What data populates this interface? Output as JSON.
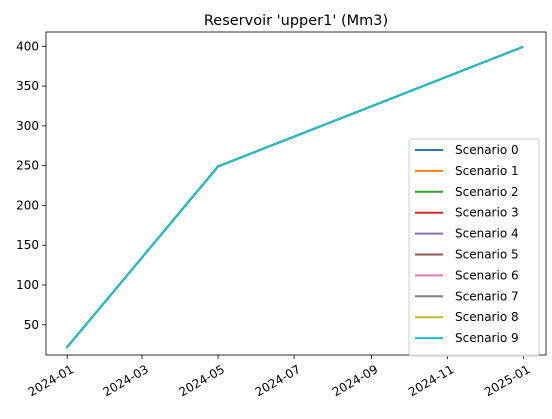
{
  "chart_data": {
    "type": "line",
    "title": "Reservoir 'upper1' (Mm3)",
    "xlabel": "",
    "ylabel": "",
    "x_tick_labels": [
      "2024-01",
      "2024-03",
      "2024-05",
      "2024-07",
      "2024-09",
      "2024-11",
      "2025-01"
    ],
    "y_ticks": [
      50,
      100,
      150,
      200,
      250,
      300,
      350,
      400
    ],
    "xlim": [
      "2023-12-15",
      "2025-01-19"
    ],
    "ylim": [
      12,
      418
    ],
    "grid": false,
    "legend_position": "lower right",
    "x": [
      "2024-01-01",
      "2024-05-01",
      "2024-12-31"
    ],
    "series": [
      {
        "name": "Scenario 0",
        "color": "#1f77b4",
        "values": [
          22,
          249,
          399
        ]
      },
      {
        "name": "Scenario 1",
        "color": "#ff7f0e",
        "values": [
          22,
          249,
          399
        ]
      },
      {
        "name": "Scenario 2",
        "color": "#2ca02c",
        "values": [
          22,
          249,
          399
        ]
      },
      {
        "name": "Scenario 3",
        "color": "#d62728",
        "values": [
          22,
          249,
          399
        ]
      },
      {
        "name": "Scenario 4",
        "color": "#9467bd",
        "values": [
          22,
          249,
          399
        ]
      },
      {
        "name": "Scenario 5",
        "color": "#8c564b",
        "values": [
          22,
          249,
          399
        ]
      },
      {
        "name": "Scenario 6",
        "color": "#e377c2",
        "values": [
          22,
          249,
          399
        ]
      },
      {
        "name": "Scenario 7",
        "color": "#7f7f7f",
        "values": [
          22,
          249,
          399
        ]
      },
      {
        "name": "Scenario 8",
        "color": "#bcbd22",
        "values": [
          22,
          249,
          399
        ]
      },
      {
        "name": "Scenario 9",
        "color": "#17becf",
        "values": [
          22,
          249,
          399
        ]
      }
    ]
  }
}
